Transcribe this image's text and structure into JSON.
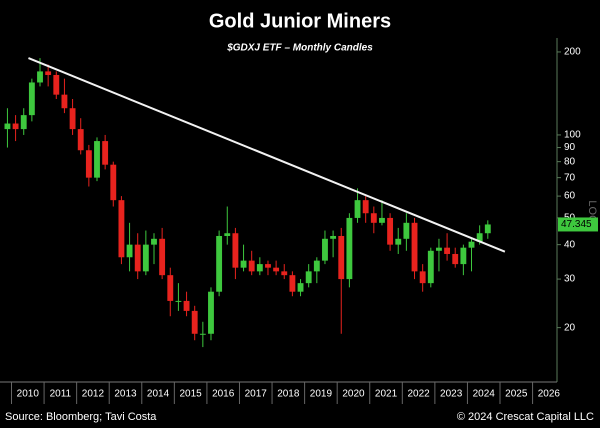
{
  "chart_data": {
    "type": "candlestick",
    "title": "Gold Junior Miners",
    "subtitle": "$GDXJ ETF – Monthly Candles",
    "source": "Source: Bloomberg; Tavi Costa",
    "copyright": "© 2024 Crescat Capital LLC",
    "scale_label": "LOG",
    "log_scale": true,
    "up_color": "#3ec83e",
    "down_color": "#e8231e",
    "x": [
      2009.875,
      2010.125,
      2010.375,
      2010.625,
      2010.875,
      2011.125,
      2011.375,
      2011.625,
      2011.875,
      2012.125,
      2012.375,
      2012.625,
      2012.875,
      2013.125,
      2013.375,
      2013.625,
      2013.875,
      2014.125,
      2014.375,
      2014.625,
      2014.875,
      2015.125,
      2015.375,
      2015.625,
      2015.875,
      2016.125,
      2016.375,
      2016.625,
      2016.875,
      2017.125,
      2017.375,
      2017.625,
      2017.875,
      2018.125,
      2018.375,
      2018.625,
      2018.875,
      2019.125,
      2019.375,
      2019.625,
      2019.875,
      2020.125,
      2020.375,
      2020.625,
      2020.875,
      2021.125,
      2021.375,
      2021.625,
      2021.875,
      2022.125,
      2022.375,
      2022.625,
      2022.875,
      2023.125,
      2023.375,
      2023.625,
      2023.875,
      2024.125,
      2024.375,
      2024.625
    ],
    "open": [
      105,
      110,
      105,
      118,
      155,
      170,
      165,
      140,
      125,
      105,
      88,
      70,
      95,
      78,
      58,
      36,
      40,
      32,
      40,
      42,
      31,
      25,
      25,
      23,
      19,
      19,
      27,
      43,
      44,
      33,
      35,
      32,
      34,
      33,
      32,
      31,
      27,
      29,
      32,
      35,
      42,
      43,
      30,
      50,
      58,
      52,
      48,
      50,
      40,
      42,
      48,
      32,
      29,
      38,
      39,
      37,
      34,
      39,
      41,
      44
    ],
    "high": [
      125,
      118,
      125,
      160,
      190,
      180,
      170,
      160,
      135,
      115,
      92,
      98,
      100,
      80,
      60,
      48,
      44,
      45,
      44,
      46,
      33,
      29,
      27,
      24,
      21,
      28,
      45,
      55,
      46,
      40,
      38,
      36,
      35,
      35,
      34,
      32,
      30,
      34,
      36,
      45,
      45,
      46,
      52,
      64,
      60,
      55,
      58,
      52,
      46,
      52,
      50,
      34,
      39,
      42,
      44,
      39,
      40,
      42,
      47,
      49
    ],
    "low": [
      90,
      95,
      100,
      112,
      150,
      150,
      135,
      120,
      100,
      85,
      65,
      68,
      75,
      55,
      34,
      32,
      30,
      31,
      34,
      30,
      22,
      23,
      22,
      18,
      17,
      18,
      26,
      40,
      30,
      32,
      31,
      31,
      31,
      31,
      30,
      26,
      26,
      28,
      29,
      34,
      36,
      19,
      28,
      48,
      48,
      44,
      47,
      38,
      37,
      38,
      30,
      27,
      28,
      32,
      35,
      33,
      31,
      32,
      40,
      42
    ],
    "close": [
      110,
      105,
      118,
      155,
      170,
      165,
      140,
      125,
      105,
      88,
      70,
      95,
      78,
      58,
      36,
      40,
      32,
      40,
      42,
      31,
      25,
      25,
      23,
      19,
      19,
      27,
      43,
      44,
      33,
      35,
      32,
      34,
      33,
      32,
      31,
      27,
      29,
      32,
      35,
      42,
      43,
      30,
      50,
      58,
      52,
      48,
      50,
      40,
      42,
      48,
      32,
      29,
      38,
      39,
      37,
      34,
      39,
      41,
      44,
      47.345
    ],
    "last_price": 47.345,
    "trendline": {
      "x": [
        2010.52,
        2025.15
      ],
      "y": [
        190,
        37.7
      ]
    },
    "xlim": [
      2009.8,
      2026.75
    ],
    "xticks": [
      2010,
      2011,
      2012,
      2013,
      2014,
      2015,
      2016,
      2017,
      2018,
      2019,
      2020,
      2021,
      2022,
      2023,
      2024,
      2025,
      2026
    ],
    "ylim": [
      12.7,
      221
    ],
    "yticks": [
      20,
      30,
      40,
      50,
      60,
      70,
      80,
      90,
      100,
      200
    ]
  }
}
